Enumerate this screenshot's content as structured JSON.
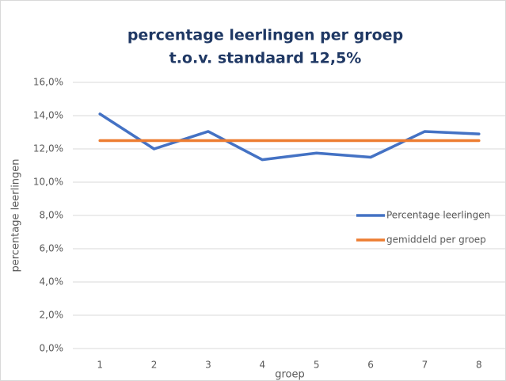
{
  "chart_data": {
    "type": "line",
    "title": "percentage leerlingen per groep",
    "subtitle": "t.o.v. standaard 12,5%",
    "x_label": "groep",
    "y_label": "percentage leerlingen",
    "categories": [
      "1",
      "2",
      "3",
      "4",
      "5",
      "6",
      "7",
      "8"
    ],
    "series": [
      {
        "name": "Percentage leerlingen",
        "color": "#4472c4",
        "values": [
          14.1,
          12.0,
          13.05,
          11.35,
          11.75,
          11.5,
          13.05,
          12.9
        ]
      },
      {
        "name": "gemiddeld per groep",
        "color": "#ed7d31",
        "values": [
          12.5,
          12.5,
          12.5,
          12.5,
          12.5,
          12.5,
          12.5,
          12.5
        ]
      }
    ],
    "ylim": [
      0,
      16
    ],
    "yticks": [
      {
        "value": 0,
        "label": "0,0%"
      },
      {
        "value": 2,
        "label": "2,0%"
      },
      {
        "value": 4,
        "label": "4,0%"
      },
      {
        "value": 6,
        "label": "6,0%"
      },
      {
        "value": 8,
        "label": "8,0%"
      },
      {
        "value": 10,
        "label": "10,0%"
      },
      {
        "value": 12,
        "label": "12,0%"
      },
      {
        "value": 14,
        "label": "14,0%"
      },
      {
        "value": 16,
        "label": "16,0%"
      }
    ],
    "grid": true,
    "legend": "right"
  }
}
